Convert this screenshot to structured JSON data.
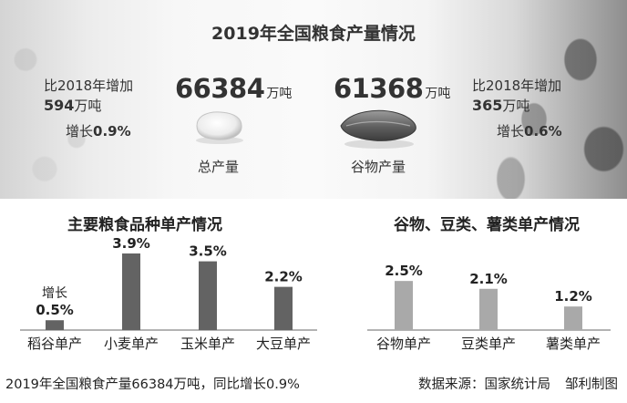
{
  "header": {
    "title": "2019年全国粮食产量情况",
    "left_increase_prefix": "比2018年增加",
    "left_increase_value": "594",
    "left_increase_unit": "万吨",
    "left_growth_prefix": "增长",
    "left_growth_value": "0.9%",
    "right_increase_prefix": "比2018年增加",
    "right_increase_value": "365",
    "right_increase_unit": "万吨",
    "right_growth_prefix": "增长",
    "right_growth_value": "0.6%",
    "total_value": "66384",
    "total_unit": "万吨",
    "total_caption": "总产量",
    "grain_value": "61368",
    "grain_unit": "万吨",
    "grain_caption": "谷物产量"
  },
  "colors": {
    "bar_dark": "#636363",
    "bar_light": "#a9a9a9",
    "axis": "#9a9a9a"
  },
  "chart_data": [
    {
      "type": "bar",
      "title": "主要粮食品种单产情况",
      "categories": [
        "稻谷单产",
        "小麦单产",
        "玉米单产",
        "大豆单产"
      ],
      "values": [
        0.5,
        3.9,
        3.5,
        2.2
      ],
      "value_labels": [
        "0.5%",
        "3.9%",
        "3.5%",
        "2.2%"
      ],
      "annotations": [
        "增长",
        "",
        "",
        ""
      ],
      "ylim": [
        0,
        4.2
      ]
    },
    {
      "type": "bar",
      "title": "谷物、豆类、薯类单产情况",
      "categories": [
        "谷物单产",
        "豆类单产",
        "薯类单产"
      ],
      "values": [
        2.5,
        2.1,
        1.2
      ],
      "value_labels": [
        "2.5%",
        "2.1%",
        "1.2%"
      ],
      "ylim": [
        0,
        4.2
      ]
    }
  ],
  "footer": {
    "summary": "2019年全国粮食产量66384万吨，同比增长0.9%",
    "source": "数据来源：国家统计局",
    "author": "邹利制图"
  }
}
